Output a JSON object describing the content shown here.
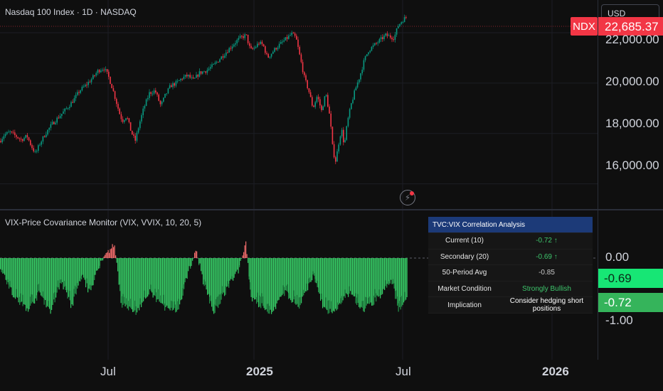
{
  "symbol": {
    "title": "Nasdaq 100 Index · 1D · NASDAQ",
    "ticker": "NDX",
    "last_price": "22,685.37",
    "currency": "USD"
  },
  "colors": {
    "up": "#089981",
    "down": "#f23645",
    "bg": "#0f0f0f",
    "green_bar": "#35c864",
    "dark_green": "#0f5a2c",
    "red_bar": "#f26b6b",
    "table_header": "#1c3a78"
  },
  "price_axis": {
    "labels": [
      "22,000.00",
      "20,000.00",
      "18,000.00",
      "16,000.00"
    ]
  },
  "time_axis": {
    "labels": [
      {
        "text": "Jul",
        "bold": false
      },
      {
        "text": "2025",
        "bold": true
      },
      {
        "text": "Jul",
        "bold": false
      },
      {
        "text": "2026",
        "bold": true
      }
    ]
  },
  "indicator": {
    "title": "VIX-Price Covariance Monitor (VIX, VVIX, 10, 20, 5)",
    "scale_labels": [
      "0.00",
      "-1.00"
    ],
    "value_tags": [
      "-0.69",
      "-0.72"
    ]
  },
  "table": {
    "header": "TVC:VIX Correlation Analysis",
    "rows": [
      {
        "label": "Current (10)",
        "value": "-0.72 ↑",
        "style": "green"
      },
      {
        "label": "Secondary (20)",
        "value": "-0.69 ↑",
        "style": "green"
      },
      {
        "label": "50-Period Avg",
        "value": "-0.85",
        "style": "neutral"
      },
      {
        "label": "Market Condition",
        "value": "Strongly Bullish",
        "style": "green"
      },
      {
        "label": "Implication",
        "value": "Consider hedging short positions",
        "style": "white"
      }
    ]
  },
  "chart_data": {
    "type": "candlestick",
    "ylim": [
      15000,
      23300
    ],
    "anchors": [
      [
        0,
        17700
      ],
      [
        6,
        17950
      ],
      [
        14,
        18050
      ],
      [
        22,
        17900
      ],
      [
        30,
        17750
      ],
      [
        38,
        17900
      ],
      [
        44,
        17500
      ],
      [
        50,
        17200
      ],
      [
        56,
        17600
      ],
      [
        64,
        18000
      ],
      [
        74,
        18400
      ],
      [
        84,
        18700
      ],
      [
        94,
        19000
      ],
      [
        104,
        19350
      ],
      [
        112,
        19700
      ],
      [
        120,
        19900
      ],
      [
        130,
        20200
      ],
      [
        138,
        20500
      ],
      [
        146,
        20600
      ],
      [
        152,
        20300
      ],
      [
        158,
        19800
      ],
      [
        164,
        19200
      ],
      [
        168,
        18800
      ],
      [
        172,
        18500
      ],
      [
        178,
        18700
      ],
      [
        184,
        18100
      ],
      [
        190,
        17700
      ],
      [
        196,
        18400
      ],
      [
        202,
        19000
      ],
      [
        210,
        19600
      ],
      [
        218,
        19700
      ],
      [
        226,
        19100
      ],
      [
        232,
        19500
      ],
      [
        240,
        19900
      ],
      [
        248,
        20000
      ],
      [
        256,
        20200
      ],
      [
        264,
        20300
      ],
      [
        272,
        20100
      ],
      [
        280,
        20400
      ],
      [
        290,
        20500
      ],
      [
        300,
        20700
      ],
      [
        310,
        21000
      ],
      [
        320,
        21300
      ],
      [
        330,
        21600
      ],
      [
        338,
        21800
      ],
      [
        346,
        21900
      ],
      [
        352,
        21300
      ],
      [
        358,
        21400
      ],
      [
        364,
        21600
      ],
      [
        370,
        21500
      ],
      [
        376,
        21000
      ],
      [
        382,
        21200
      ],
      [
        388,
        21400
      ],
      [
        396,
        21600
      ],
      [
        404,
        21800
      ],
      [
        410,
        21950
      ],
      [
        416,
        21800
      ],
      [
        422,
        21000
      ],
      [
        428,
        20200
      ],
      [
        434,
        19700
      ],
      [
        440,
        19000
      ],
      [
        446,
        19500
      ],
      [
        452,
        18900
      ],
      [
        458,
        19600
      ],
      [
        464,
        18600
      ],
      [
        468,
        17300
      ],
      [
        472,
        16900
      ],
      [
        476,
        17600
      ],
      [
        480,
        18200
      ],
      [
        484,
        17500
      ],
      [
        488,
        18400
      ],
      [
        494,
        19200
      ],
      [
        500,
        19800
      ],
      [
        506,
        20300
      ],
      [
        512,
        20900
      ],
      [
        518,
        21300
      ],
      [
        526,
        21500
      ],
      [
        534,
        21700
      ],
      [
        542,
        21900
      ],
      [
        548,
        21850
      ],
      [
        554,
        21800
      ],
      [
        560,
        22300
      ],
      [
        566,
        22500
      ],
      [
        572,
        22650
      ]
    ]
  }
}
